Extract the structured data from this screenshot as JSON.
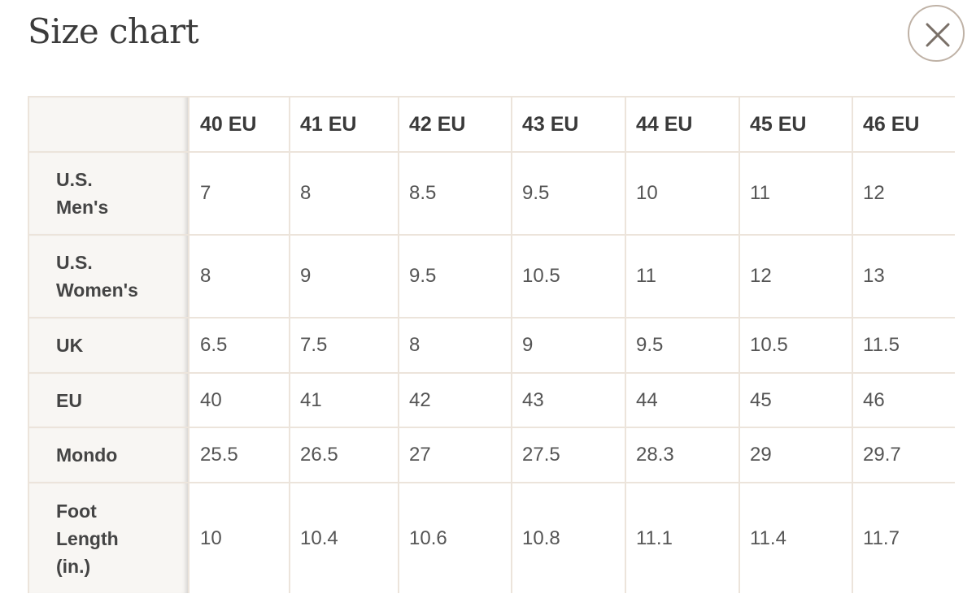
{
  "page": {
    "title": "Size chart",
    "close_icon": "close-icon"
  },
  "table": {
    "corner": "",
    "columns": [
      "40 EU",
      "41 EU",
      "42 EU",
      "43 EU",
      "44 EU",
      "45 EU",
      "46 EU"
    ],
    "rows": [
      {
        "label_lines": [
          "U.S.",
          "Men's"
        ],
        "values": [
          "7",
          "8",
          "8.5",
          "9.5",
          "10",
          "11",
          "12"
        ]
      },
      {
        "label_lines": [
          "U.S.",
          "Women's"
        ],
        "values": [
          "8",
          "9",
          "9.5",
          "10.5",
          "11",
          "12",
          "13"
        ]
      },
      {
        "label_lines": [
          "UK"
        ],
        "values": [
          "6.5",
          "7.5",
          "8",
          "9",
          "9.5",
          "10.5",
          "11.5"
        ]
      },
      {
        "label_lines": [
          "EU"
        ],
        "values": [
          "40",
          "41",
          "42",
          "43",
          "44",
          "45",
          "46"
        ]
      },
      {
        "label_lines": [
          "Mondo"
        ],
        "values": [
          "25.5",
          "26.5",
          "27",
          "27.5",
          "28.3",
          "29",
          "29.7"
        ]
      },
      {
        "label_lines": [
          "Foot",
          "Length",
          "(in.)"
        ],
        "values": [
          "10",
          "10.4",
          "10.6",
          "10.8",
          "11.1",
          "11.4",
          "11.7"
        ]
      }
    ]
  },
  "colors": {
    "border": "#ece4db",
    "label_background": "#f8f6f3",
    "close_ring": "#bfb2a6",
    "close_glyph": "#7a7068"
  }
}
